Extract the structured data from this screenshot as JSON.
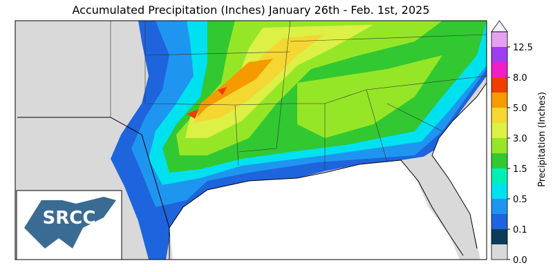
{
  "title": "Accumulated Precipitation (Inches) January 26th - Feb. 1st, 2025",
  "logo": "SRCC",
  "colorbar": {
    "label": "Precipitation (Inches)",
    "ticks": [
      {
        "value": 0,
        "label": "0.0"
      },
      0.1,
      0.5,
      1.5,
      {
        "value": 3,
        "label": "3.0"
      },
      {
        "value": 5,
        "label": "5.0"
      },
      {
        "value": 8,
        "label": "8.0"
      },
      12.5
    ],
    "colors": [
      "#d9d9d9",
      "#0b3d5b",
      "#1e64dc",
      "#1e96f0",
      "#00e1f0",
      "#00f0b4",
      "#32c832",
      "#96e628",
      "#dcf046",
      "#f5d732",
      "#f59b00",
      "#f03c00",
      "#f01ec3",
      "#a03cf0",
      "#e6a0f0"
    ],
    "extend_color": "#f8f0fa"
  }
}
